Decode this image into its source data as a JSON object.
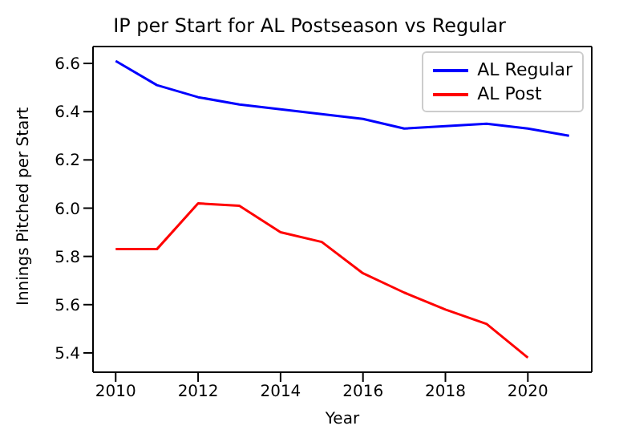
{
  "chart_data": {
    "type": "line",
    "title": "IP per Start for AL Postseason vs Regular",
    "xlabel": "Year",
    "ylabel": "Innings Pitched per Start",
    "x": [
      2010,
      2011,
      2012,
      2013,
      2014,
      2015,
      2016,
      2017,
      2018,
      2019,
      2020,
      2021
    ],
    "series": [
      {
        "name": "AL Regular",
        "color": "#0000ff",
        "values": [
          6.61,
          6.51,
          6.46,
          6.43,
          6.41,
          6.39,
          6.37,
          6.33,
          6.34,
          6.35,
          6.33,
          6.3
        ]
      },
      {
        "name": "AL Post",
        "color": "#ff0000",
        "values": [
          5.83,
          5.83,
          6.02,
          6.01,
          5.9,
          5.86,
          5.73,
          5.65,
          5.58,
          5.52,
          5.38,
          null
        ]
      }
    ],
    "xlim": [
      2009.45,
      2021.55
    ],
    "xticks": [
      2010,
      2012,
      2014,
      2016,
      2018,
      2020
    ],
    "ylim": [
      5.32,
      6.67
    ],
    "yticks": [
      5.4,
      5.6,
      5.8,
      {
        "value": 6.0,
        "label": "6.0"
      },
      6.2,
      6.4,
      6.6
    ],
    "grid": false,
    "legend": "top right",
    "marker": "none",
    "line_style": "solid"
  }
}
